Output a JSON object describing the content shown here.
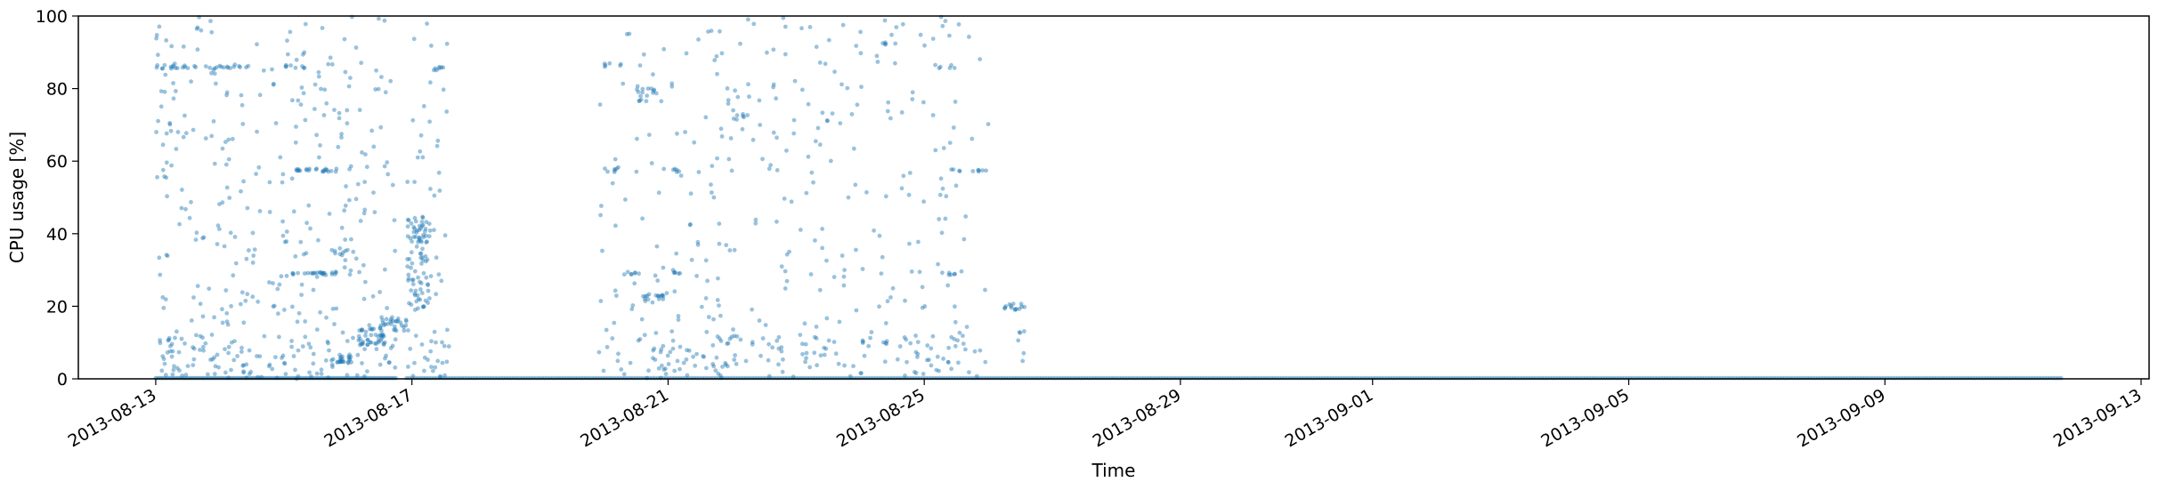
{
  "chart_data": {
    "type": "scatter",
    "title": "",
    "xlabel": "Time",
    "ylabel": "CPU usage [%]",
    "ylim": [
      0,
      100
    ],
    "xlim": [
      "2013-08-11T19:00",
      "2013-09-13T03:00"
    ],
    "yticks": [
      0,
      20,
      40,
      60,
      80,
      100
    ],
    "ytick_labels": [
      "0",
      "20",
      "40",
      "60",
      "80",
      "100"
    ],
    "xticks": [
      "2013-08-13",
      "2013-08-17",
      "2013-08-21",
      "2013-08-25",
      "2013-08-29",
      "2013-09-01",
      "2013-09-05",
      "2013-09-09",
      "2013-09-13"
    ],
    "xtick_rotation": 30,
    "grid": false,
    "marker_color": "#1f77b4",
    "marker_alpha": 0.45,
    "clusters": [
      {
        "t0": "2013-08-13T00:00",
        "t1": "2013-08-16T18:00",
        "y0": 0,
        "y1": 100,
        "n": 420
      },
      {
        "t0": "2013-08-13T00:00",
        "t1": "2013-08-13T12:00",
        "y0": 85.5,
        "y1": 86.5,
        "n": 12
      },
      {
        "t0": "2013-08-13T12:00",
        "t1": "2013-08-14T06:00",
        "y0": 85.5,
        "y1": 86.5,
        "n": 10
      },
      {
        "t0": "2013-08-14T00:00",
        "t1": "2013-08-14T12:00",
        "y0": 85.5,
        "y1": 86.5,
        "n": 8
      },
      {
        "t0": "2013-08-15T00:00",
        "t1": "2013-08-15T08:00",
        "y0": 85.5,
        "y1": 86.5,
        "n": 8
      },
      {
        "t0": "2013-08-15T03:00",
        "t1": "2013-08-15T20:00",
        "y0": 57,
        "y1": 58,
        "n": 22
      },
      {
        "t0": "2013-08-15T00:00",
        "t1": "2013-08-15T20:00",
        "y0": 28.5,
        "y1": 29.5,
        "n": 22
      },
      {
        "t0": "2013-08-15T18:00",
        "t1": "2013-08-16T00:00",
        "y0": 32,
        "y1": 36,
        "n": 10
      },
      {
        "t0": "2013-08-15T18:00",
        "t1": "2013-08-16T04:00",
        "y0": 4,
        "y1": 7,
        "n": 22
      },
      {
        "t0": "2013-08-16T04:00",
        "t1": "2013-08-16T14:00",
        "y0": 9,
        "y1": 14,
        "n": 36
      },
      {
        "t0": "2013-08-16T12:00",
        "t1": "2013-08-16T22:00",
        "y0": 13,
        "y1": 17,
        "n": 30
      },
      {
        "t0": "2013-08-16T22:00",
        "t1": "2013-08-17T06:00",
        "y0": 18,
        "y1": 45,
        "n": 80
      },
      {
        "t0": "2013-08-16T22:00",
        "t1": "2013-08-17T14:00",
        "y0": 0,
        "y1": 100,
        "n": 70
      },
      {
        "t0": "2013-08-17T08:00",
        "t1": "2013-08-17T14:00",
        "y0": 85,
        "y1": 86,
        "n": 6
      },
      {
        "t0": "2013-08-19T22:00",
        "t1": "2013-08-25T12:00",
        "y0": 0,
        "y1": 100,
        "n": 380
      },
      {
        "t0": "2013-08-20T00:00",
        "t1": "2013-08-20T08:00",
        "y0": 86,
        "y1": 87,
        "n": 6
      },
      {
        "t0": "2013-08-20T12:00",
        "t1": "2013-08-20T20:00",
        "y0": 76.5,
        "y1": 80,
        "n": 14
      },
      {
        "t0": "2013-08-20T14:00",
        "t1": "2013-08-21T00:00",
        "y0": 21,
        "y1": 24,
        "n": 16
      },
      {
        "t0": "2013-08-20T00:00",
        "t1": "2013-08-20T06:00",
        "y0": 57,
        "y1": 58,
        "n": 6
      },
      {
        "t0": "2013-08-20T06:00",
        "t1": "2013-08-20T12:00",
        "y0": 28.5,
        "y1": 29.5,
        "n": 6
      },
      {
        "t0": "2013-08-21T00:00",
        "t1": "2013-08-21T06:00",
        "y0": 57,
        "y1": 58,
        "n": 5
      },
      {
        "t0": "2013-08-21T00:00",
        "t1": "2013-08-21T06:00",
        "y0": 29,
        "y1": 30,
        "n": 5
      },
      {
        "t0": "2013-08-21T14:00",
        "t1": "2013-08-22T00:00",
        "y0": 0,
        "y1": 100,
        "n": 24
      },
      {
        "t0": "2013-08-22T00:00",
        "t1": "2013-08-22T06:00",
        "y0": 71,
        "y1": 74,
        "n": 8
      },
      {
        "t0": "2013-08-24T08:00",
        "t1": "2013-08-24T14:00",
        "y0": 92,
        "y1": 93,
        "n": 5
      },
      {
        "t0": "2013-08-25T00:00",
        "t1": "2013-08-25T12:00",
        "y0": 85.5,
        "y1": 86.5,
        "n": 6
      },
      {
        "t0": "2013-08-25T06:00",
        "t1": "2013-08-25T12:00",
        "y0": 28.5,
        "y1": 29.5,
        "n": 5
      },
      {
        "t0": "2013-08-25T10:00",
        "t1": "2013-08-26T00:00",
        "y0": 57,
        "y1": 58,
        "n": 10
      },
      {
        "t0": "2013-08-25T00:00",
        "t1": "2013-08-26T00:00",
        "y0": 0,
        "y1": 100,
        "n": 40
      },
      {
        "t0": "2013-08-26T06:00",
        "t1": "2013-08-26T14:00",
        "y0": 19,
        "y1": 21,
        "n": 14
      },
      {
        "t0": "2013-08-26T10:00",
        "t1": "2013-08-26T14:00",
        "y0": 0,
        "y1": 18,
        "n": 6
      }
    ],
    "baseline": {
      "t0": "2013-08-16T22:00",
      "t1": "2013-09-11T18:00",
      "y": 0.2,
      "n": 600
    },
    "early_baseline": {
      "t0": "2013-08-13T00:00",
      "t1": "2013-08-16T18:00",
      "y": 0.2,
      "n": 120
    }
  }
}
